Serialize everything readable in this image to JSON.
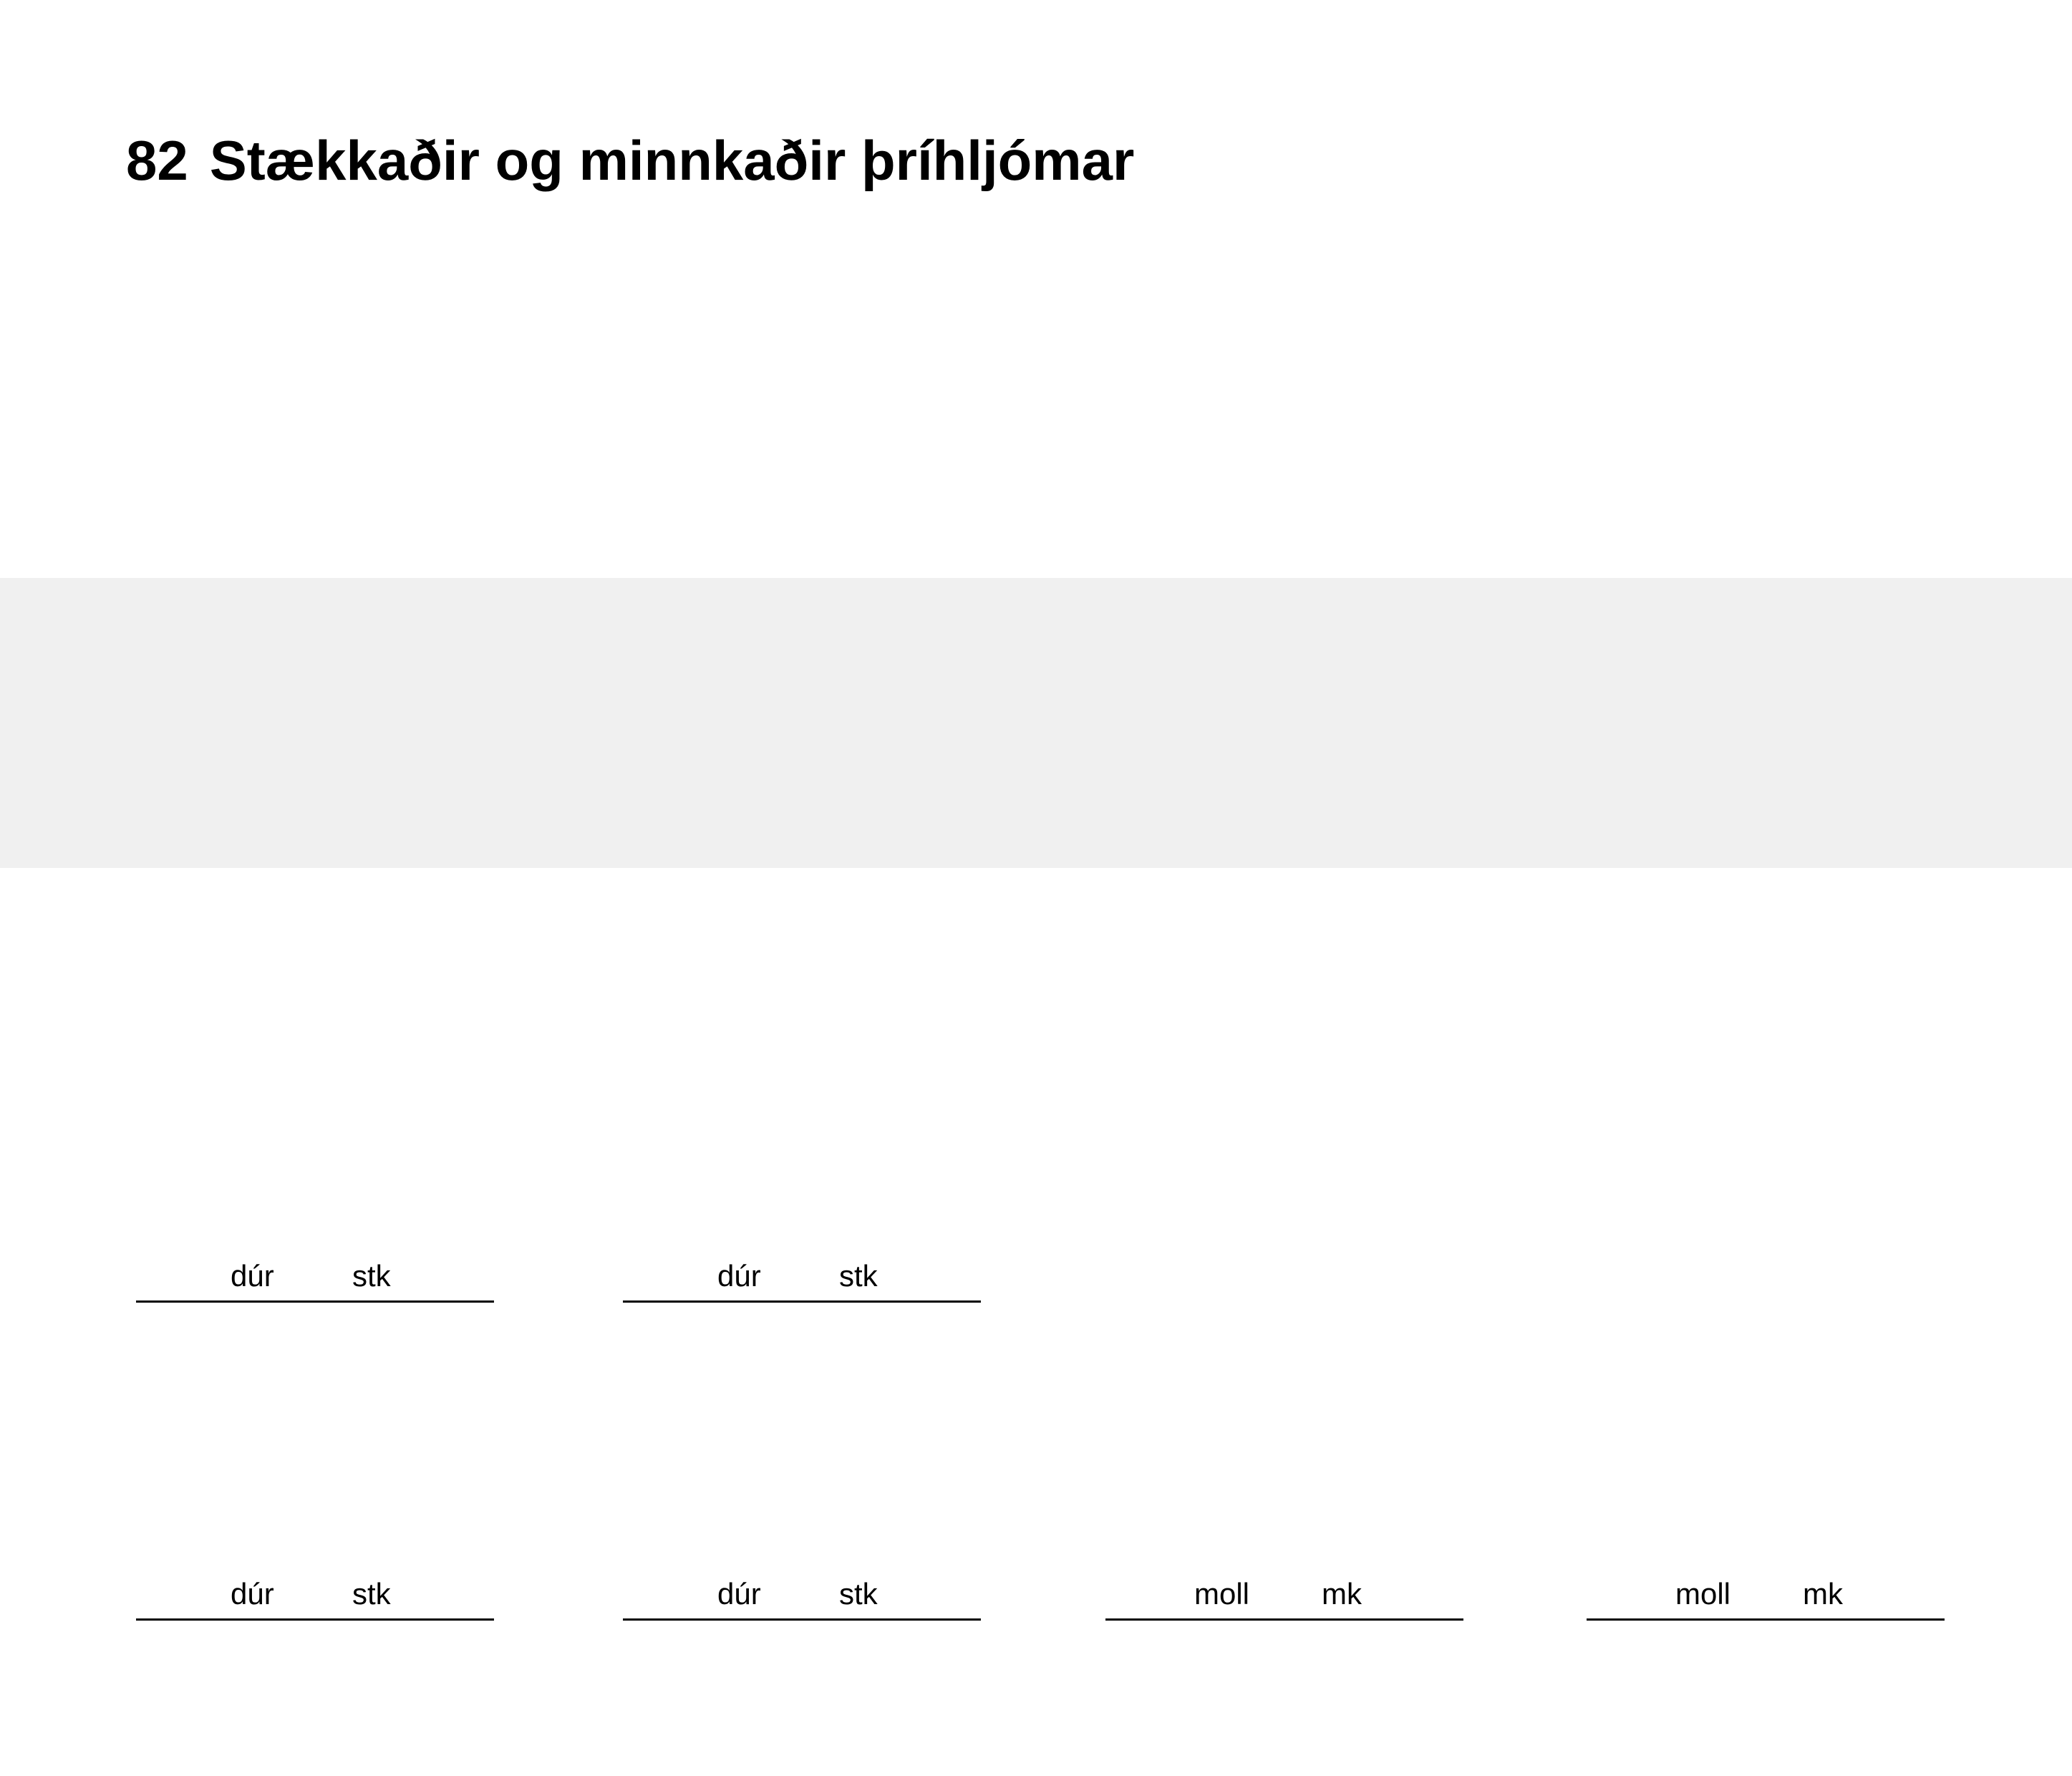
{
  "page": {
    "number": "82",
    "title": "Stækkaðir og minnkaðir þríhljómar"
  },
  "answers": [
    {
      "option1": "dúr",
      "option2": "stk"
    },
    {
      "option1": "dúr",
      "option2": "stk"
    },
    {
      "option1": "dúr",
      "option2": "stk"
    },
    {
      "option1": "dúr",
      "option2": "stk"
    },
    {
      "option1": "moll",
      "option2": "mk"
    },
    {
      "option1": "moll",
      "option2": "mk"
    }
  ],
  "colors": {
    "band": "#f0f0f0",
    "text": "#000000",
    "background": "#ffffff"
  }
}
